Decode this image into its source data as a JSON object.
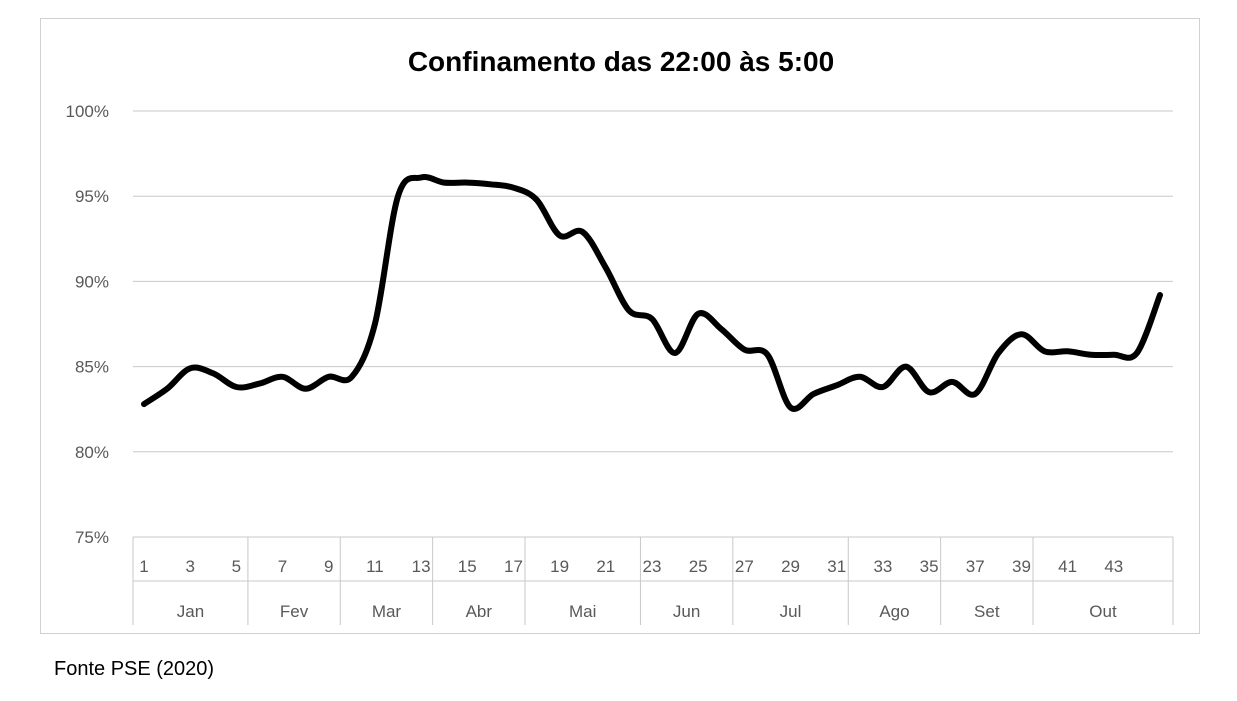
{
  "chart_data": {
    "type": "line",
    "title": "Confinamento das 22:00 às 5:00",
    "xlabel": "",
    "ylabel": "",
    "ylim": [
      75,
      100
    ],
    "y_ticks": [
      "100%",
      "95%",
      "90%",
      "85%",
      "80%",
      "75%"
    ],
    "grid": true,
    "legend": "none",
    "line_color": "#000000",
    "x_tick_labels": [
      "1",
      "3",
      "5",
      "7",
      "9",
      "11",
      "13",
      "15",
      "17",
      "19",
      "21",
      "23",
      "25",
      "27",
      "29",
      "31",
      "33",
      "35",
      "37",
      "39",
      "41",
      "43"
    ],
    "months": [
      {
        "label": "Jan",
        "start": 1,
        "end": 5
      },
      {
        "label": "Fev",
        "start": 6,
        "end": 9
      },
      {
        "label": "Mar",
        "start": 10,
        "end": 13
      },
      {
        "label": "Abr",
        "start": 14,
        "end": 17
      },
      {
        "label": "Mai",
        "start": 18,
        "end": 22
      },
      {
        "label": "Jun",
        "start": 23,
        "end": 26
      },
      {
        "label": "Jul",
        "start": 27,
        "end": 31
      },
      {
        "label": "Ago",
        "start": 32,
        "end": 35
      },
      {
        "label": "Set",
        "start": 36,
        "end": 39
      },
      {
        "label": "Out",
        "start": 40,
        "end": 44
      }
    ],
    "series": [
      {
        "x": [
          1,
          2,
          3,
          4,
          5,
          6,
          7,
          8,
          9,
          10,
          11,
          12,
          13,
          14,
          15,
          16,
          17,
          18,
          19,
          20,
          21,
          22,
          23,
          24,
          25,
          26,
          27,
          28,
          29,
          30,
          31,
          32,
          33,
          34,
          35,
          36,
          37,
          38,
          39,
          40,
          41,
          42,
          43,
          44,
          45
        ],
        "values": [
          82.8,
          83.7,
          84.9,
          84.6,
          83.8,
          84.0,
          84.4,
          83.7,
          84.4,
          84.4,
          87.5,
          95.0,
          96.1,
          95.8,
          95.8,
          95.7,
          95.5,
          94.8,
          92.7,
          92.9,
          90.8,
          88.3,
          87.8,
          85.8,
          88.1,
          87.2,
          86.0,
          85.7,
          82.6,
          83.4,
          83.9,
          84.4,
          83.8,
          85.0,
          83.5,
          84.1,
          83.4,
          85.8,
          86.9,
          85.9,
          85.9,
          85.7,
          85.7,
          85.8,
          89.2
        ]
      }
    ]
  },
  "footer": {
    "source": "Fonte PSE (2020)"
  }
}
